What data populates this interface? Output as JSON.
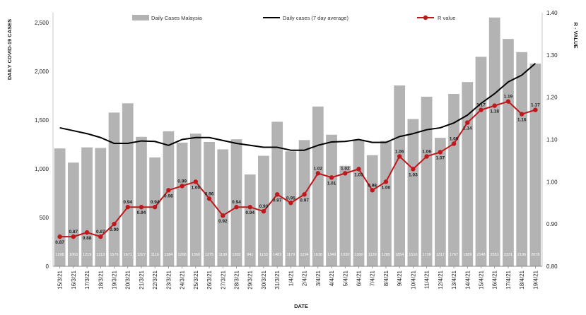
{
  "chart_data": {
    "type": "bar",
    "xlabel": "DATE",
    "ylabel": "DAILY COVID-19 CASES",
    "y2label": "R - VALUE",
    "ylim": [
      0,
      2600
    ],
    "y2lim": [
      0.8,
      1.4
    ],
    "yticks": [
      "0",
      "500",
      "1,000",
      "1,500",
      "2,000",
      "2,500"
    ],
    "y2ticks": [
      "0.80",
      "0.90",
      "1.00",
      "1.10",
      "1.20",
      "1.30",
      "1.40"
    ],
    "grid": false,
    "legend": {
      "position": "top",
      "entries": [
        "Daily Cases Malaysia",
        "Daily cases (7 day average)",
        "R value"
      ]
    },
    "categories": [
      "15/3/21",
      "16/3/21",
      "17/3/21",
      "18/3/21",
      "19/3/21",
      "20/3/21",
      "21/3/21",
      "22/3/21",
      "23/3/21",
      "24/3/21",
      "25/3/21",
      "26/3/21",
      "27/3/21",
      "28/3/21",
      "29/3/21",
      "30/3/21",
      "31/3/21",
      "1/4/21",
      "2/4/21",
      "3/4/21",
      "4/4/21",
      "5/4/21",
      "6/4/21",
      "7/4/21",
      "8/4/21",
      "9/4/21",
      "10/4/21",
      "11/4/21",
      "12/4/21",
      "13/4/21",
      "14/4/21",
      "15/4/21",
      "16/4/21",
      "17/4/21",
      "18/4/21",
      "19/4/21"
    ],
    "series": [
      {
        "name": "Daily Cases Malaysia",
        "type": "bar",
        "color": "#b3b3b3",
        "axis": "left",
        "values": [
          1208,
          1063,
          1219,
          1213,
          1576,
          1671,
          1327,
          1116,
          1384,
          1268,
          1360,
          1275,
          1199,
          1302,
          941,
          1133,
          1482,
          1179,
          1294,
          1638,
          1349,
          1030,
          1300,
          1139,
          1285,
          1854,
          1510,
          1739,
          1317,
          1767,
          1889,
          2148,
          2551,
          2331,
          2196,
          2078
        ],
        "labels": [
          "1208",
          "1063",
          "1219",
          "1213",
          "1576",
          "1671",
          "1327",
          "1116",
          "1384",
          "1268",
          "1360",
          "1275",
          "1199",
          "1302",
          "941",
          "1133",
          "1482",
          "1179",
          "1294",
          "1638",
          "1349",
          "1030",
          "1300",
          "1139",
          "1285",
          "1854",
          "1510",
          "1739",
          "1317",
          "1767",
          "1889",
          "2148",
          "2551",
          "2331",
          "2196",
          "2078"
        ]
      },
      {
        "name": "Daily cases (7 day average)",
        "type": "line",
        "color": "#000000",
        "axis": "left",
        "values": [
          1420,
          1390,
          1360,
          1320,
          1260,
          1260,
          1285,
          1280,
          1240,
          1300,
          1320,
          1320,
          1290,
          1260,
          1240,
          1220,
          1220,
          1190,
          1190,
          1240,
          1275,
          1280,
          1300,
          1270,
          1270,
          1330,
          1360,
          1400,
          1420,
          1470,
          1550,
          1670,
          1770,
          1890,
          1960,
          2080
        ]
      },
      {
        "name": "R value",
        "type": "line",
        "color": "#c0171b",
        "axis": "right",
        "values": [
          0.87,
          0.87,
          0.88,
          0.87,
          0.9,
          0.94,
          0.94,
          0.94,
          0.98,
          0.99,
          1.0,
          0.96,
          0.92,
          0.94,
          0.94,
          0.93,
          0.97,
          0.95,
          0.97,
          1.02,
          1.01,
          1.02,
          1.03,
          0.98,
          1.0,
          1.06,
          1.03,
          1.06,
          1.07,
          1.09,
          1.14,
          1.17,
          1.18,
          1.19,
          1.16,
          1.17
        ],
        "labels": [
          "0.87",
          "0.87",
          "0.88",
          "0.87",
          "0.90",
          "0.94",
          "0.94",
          "0.94",
          "0.98",
          "0.99",
          "1.00",
          "0.96",
          "0.92",
          "0.94",
          "0.94",
          "0.93",
          "0.97",
          "0.95",
          "0.97",
          "1.02",
          "1.01",
          "1.02",
          "1.03",
          "0.98",
          "1.00",
          "1.06",
          "1.03",
          "1.06",
          "1.07",
          "1.09",
          "1.14",
          "1.17",
          "1.18",
          "1.19",
          "1.16",
          "1.17"
        ]
      }
    ]
  }
}
